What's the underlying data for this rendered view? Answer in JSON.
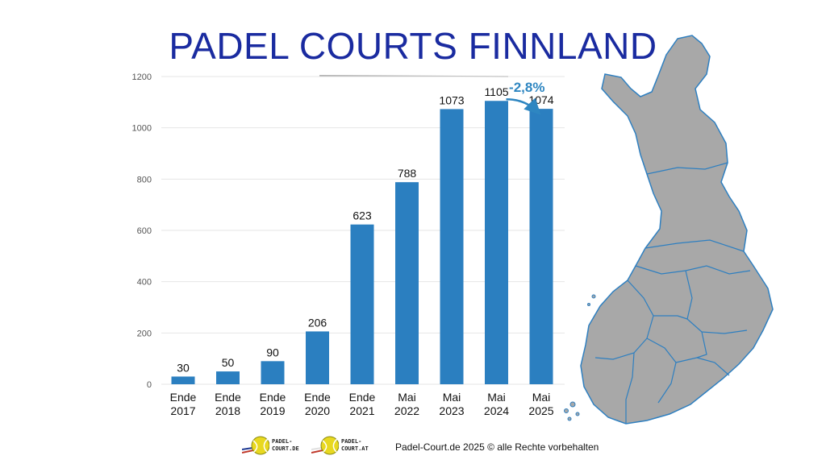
{
  "header": {
    "title": "PADEL COURTS FINNLAND"
  },
  "chart_data": {
    "type": "bar",
    "categories": [
      [
        "Ende",
        "2017"
      ],
      [
        "Ende",
        "2018"
      ],
      [
        "Ende",
        "2019"
      ],
      [
        "Ende",
        "2020"
      ],
      [
        "Ende",
        "2021"
      ],
      [
        "Mai",
        "2022"
      ],
      [
        "Mai",
        "2023"
      ],
      [
        "Mai",
        "2024"
      ],
      [
        "Mai",
        "2025"
      ]
    ],
    "values": [
      30,
      50,
      90,
      206,
      623,
      788,
      1073,
      1105,
      1074
    ],
    "data_labels": [
      "30",
      "50",
      "90",
      "206",
      "623",
      "788",
      "1073",
      "1105",
      "1074"
    ],
    "yticks": [
      "0",
      "200",
      "400",
      "600",
      "800",
      "1000",
      "1200"
    ],
    "ylim": [
      0,
      1200
    ],
    "grid": true,
    "bar_color": "#2b7fc0",
    "annotation": {
      "text": "-2,8%",
      "from_index": 7,
      "to_index": 8,
      "color": "#2e86c1"
    }
  },
  "footer": {
    "copyright": "Padel-Court.de 2025 © alle Rechte vorbehalten",
    "logos": [
      {
        "line1": "PADEL-",
        "line2": "COURT.DE",
        "icon": "padel-ball-icon"
      },
      {
        "line1": "PADEL-",
        "line2": "COURT.AT",
        "icon": "padel-ball-icon"
      }
    ]
  },
  "map": {
    "fill": "#a8a8a8",
    "stroke": "#2e7fc0",
    "icon": "finland-map"
  }
}
